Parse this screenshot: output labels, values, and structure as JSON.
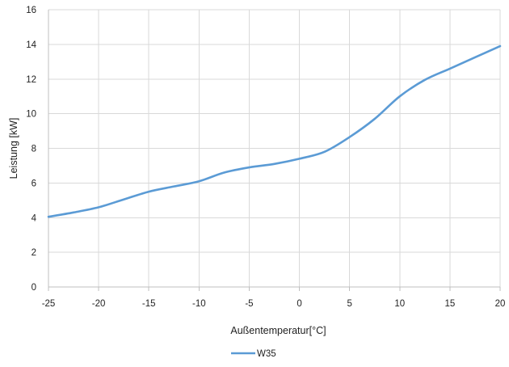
{
  "chart_data": {
    "type": "line",
    "title": "",
    "xlabel": "Außentemperatur[°C]",
    "ylabel": "Leistung [kW]",
    "xlim": [
      -25,
      20
    ],
    "ylim": [
      0,
      16
    ],
    "x_ticks": [
      "-25",
      "-20",
      "-15",
      "-10",
      "-5",
      "0",
      "5",
      "10",
      "15",
      "20"
    ],
    "y_ticks": [
      "0",
      "2",
      "4",
      "6",
      "8",
      "10",
      "12",
      "14",
      "16"
    ],
    "grid": "vertical and horizontal",
    "legend": "bottom-center",
    "series": [
      {
        "name": "W35",
        "color": "#5b9bd5",
        "x": [
          -25,
          -22.5,
          -20,
          -17.5,
          -15,
          -12.5,
          -10,
          -7.5,
          -5,
          -2.5,
          0,
          2.5,
          5,
          7.5,
          10,
          12.5,
          15,
          17.5,
          20
        ],
        "y": [
          4.05,
          4.3,
          4.6,
          5.05,
          5.5,
          5.8,
          6.1,
          6.6,
          6.9,
          7.1,
          7.4,
          7.8,
          8.65,
          9.7,
          11.0,
          11.95,
          12.6,
          13.25,
          13.9
        ]
      }
    ]
  }
}
